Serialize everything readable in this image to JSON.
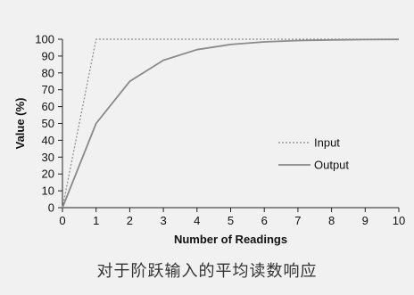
{
  "chart_data": {
    "type": "line",
    "xlabel": "Number of Readings",
    "ylabel": "Value (%)",
    "xlim": [
      0,
      10
    ],
    "ylim": [
      0,
      100
    ],
    "x_ticks": [
      "0",
      "1",
      "2",
      "3",
      "4",
      "5",
      "6",
      "7",
      "8",
      "9",
      "10"
    ],
    "y_ticks": [
      "0",
      "10",
      "20",
      "30",
      "40",
      "50",
      "60",
      "70",
      "80",
      "90",
      "100"
    ],
    "grid": false,
    "legend_position": "right",
    "series": [
      {
        "name": "Input",
        "style": "dotted",
        "color": "#8a8a8a",
        "x": [
          0,
          1,
          2,
          3,
          4,
          5,
          6,
          7,
          8,
          9,
          10
        ],
        "y": [
          0,
          100,
          100,
          100,
          100,
          100,
          100,
          100,
          100,
          100,
          100
        ]
      },
      {
        "name": "Output",
        "style": "solid",
        "color": "#8a8a8a",
        "x": [
          0,
          1,
          2,
          3,
          4,
          5,
          6,
          7,
          8,
          9,
          10
        ],
        "y": [
          0,
          50,
          75,
          87.5,
          93.8,
          96.9,
          98.4,
          99.2,
          99.6,
          99.8,
          99.9
        ]
      }
    ]
  },
  "caption": "对于阶跃输入的平均读数响应"
}
